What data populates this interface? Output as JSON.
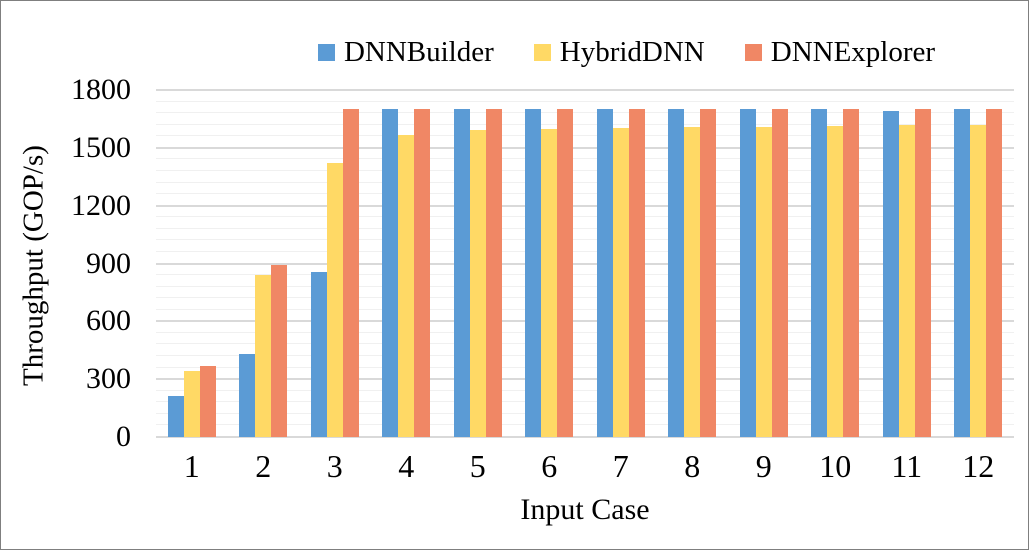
{
  "figure": {
    "background": "#FFFFFF",
    "border_color": "#7F7F7F"
  },
  "chart_data": {
    "type": "bar",
    "title": "",
    "xlabel": "Input Case",
    "ylabel": "Throughput (GOP/s)",
    "categories": [
      "1",
      "2",
      "3",
      "4",
      "5",
      "6",
      "7",
      "8",
      "9",
      "10",
      "11",
      "12"
    ],
    "series": [
      {
        "name": "DNNBuilder",
        "color": "#5B9BD5",
        "values": [
          215,
          430,
          855,
          1700,
          1700,
          1700,
          1700,
          1700,
          1700,
          1700,
          1690,
          1700
        ]
      },
      {
        "name": "HybridDNN",
        "color": "#FFD965",
        "values": [
          340,
          840,
          1420,
          1565,
          1595,
          1600,
          1605,
          1610,
          1610,
          1615,
          1620,
          1620
        ]
      },
      {
        "name": "DNNExplorer",
        "color": "#F08765",
        "values": [
          370,
          890,
          1700,
          1700,
          1700,
          1700,
          1700,
          1700,
          1700,
          1700,
          1700,
          1700
        ]
      }
    ],
    "ylim": [
      0,
      1800
    ],
    "ytick_step": 300,
    "minor_ytick_step": 60,
    "grid": "horizontal",
    "legend_position": "top",
    "gridline_major_color": "#D9D9D9",
    "gridline_minor_color": "#F0F0F0",
    "axis_line_color": "#D9D9D9"
  }
}
